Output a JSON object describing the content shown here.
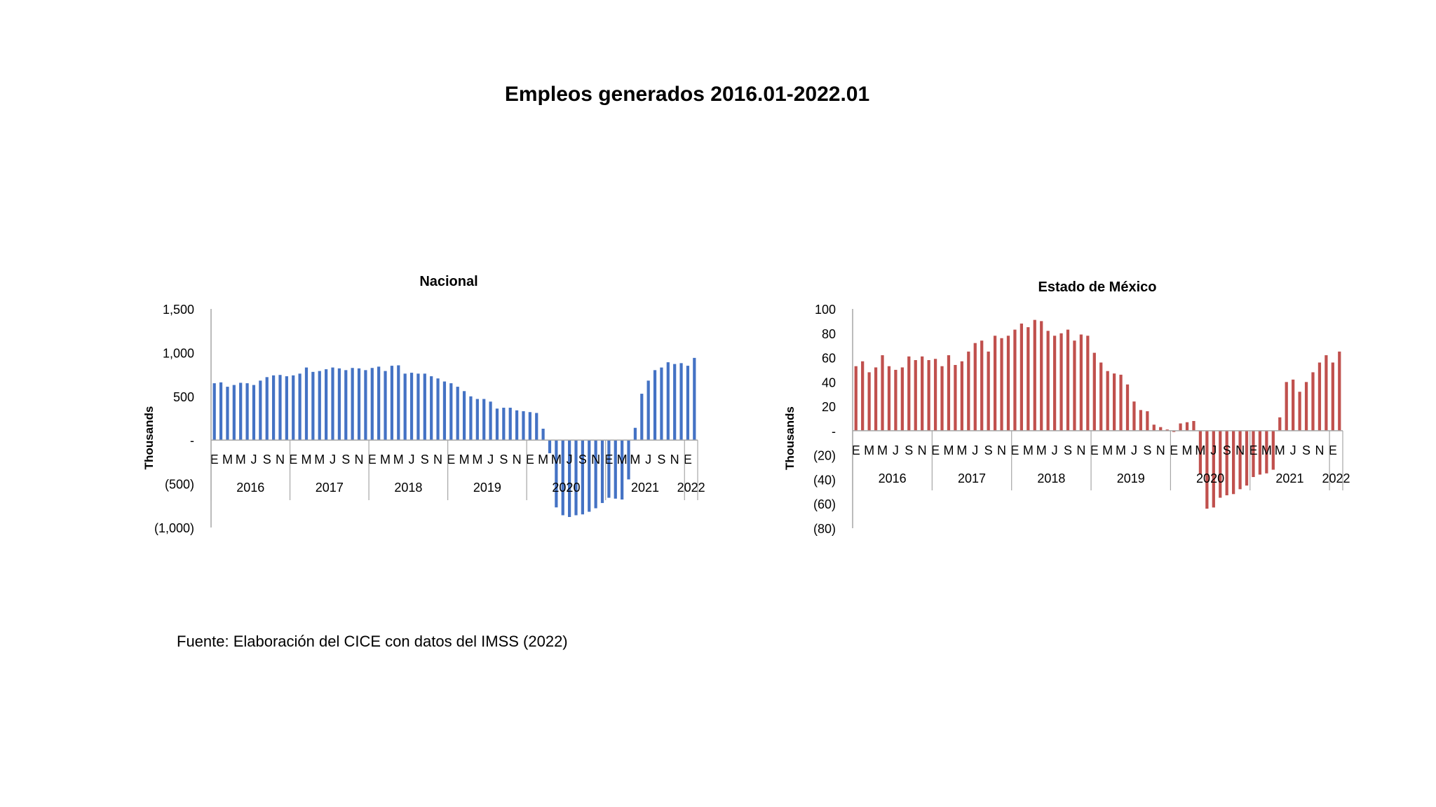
{
  "title": "Empleos generados 2016.01-2022.01",
  "source": "Fuente: Elaboración del CICE con datos del IMSS (2022)",
  "colors": {
    "nacional": "#4472C4",
    "edomex": "#C0504D",
    "axis": "#A6A6A6"
  },
  "chart_data": [
    {
      "type": "bar",
      "title": "Nacional",
      "ylabel": "Thousands",
      "ylim": [
        -1000,
        1500
      ],
      "yticks": [
        1500,
        1000,
        500,
        0,
        -500,
        -1000
      ],
      "ytick_labels": [
        "1,500",
        "1,000",
        "500",
        "-",
        "(500)",
        "(1,000)"
      ],
      "month_labels": [
        "E",
        "M",
        "M",
        "J",
        "S",
        "N"
      ],
      "years": [
        "2016",
        "2017",
        "2018",
        "2019",
        "2020",
        "2021",
        "2022"
      ],
      "values": [
        650,
        660,
        610,
        630,
        655,
        650,
        630,
        680,
        720,
        740,
        745,
        730,
        740,
        760,
        830,
        780,
        790,
        810,
        830,
        820,
        800,
        825,
        820,
        800,
        825,
        840,
        790,
        850,
        855,
        760,
        770,
        760,
        760,
        730,
        705,
        670,
        650,
        610,
        560,
        500,
        470,
        470,
        440,
        360,
        370,
        370,
        340,
        330,
        320,
        310,
        130,
        -150,
        -770,
        -860,
        -880,
        -860,
        -850,
        -820,
        -780,
        -720,
        -660,
        -670,
        -680,
        -450,
        140,
        530,
        680,
        800,
        830,
        890,
        870,
        880,
        850,
        940
      ]
    },
    {
      "type": "bar",
      "title": "Estado de México",
      "ylabel": "Thousands",
      "ylim": [
        -80,
        100
      ],
      "yticks": [
        100,
        80,
        60,
        40,
        20,
        0,
        -20,
        -40,
        -60,
        -80
      ],
      "ytick_labels": [
        "100",
        "80",
        "60",
        "40",
        "20",
        "-",
        "(20)",
        "(40)",
        "(60)",
        "(80)"
      ],
      "month_labels": [
        "E",
        "M",
        "M",
        "J",
        "S",
        "N"
      ],
      "years": [
        "2016",
        "2017",
        "2018",
        "2019",
        "2020",
        "2021",
        "2022"
      ],
      "values": [
        53,
        57,
        48,
        52,
        62,
        53,
        50,
        52,
        61,
        58,
        61,
        58,
        59,
        53,
        62,
        54,
        57,
        65,
        72,
        74,
        65,
        78,
        76,
        78,
        83,
        88,
        85,
        91,
        90,
        82,
        78,
        80,
        83,
        74,
        79,
        78,
        64,
        56,
        49,
        47,
        46,
        38,
        24,
        17,
        16,
        5,
        3,
        1,
        -1,
        6,
        7,
        8,
        -36,
        -64,
        -63,
        -55,
        -53,
        -52,
        -48,
        -45,
        -38,
        -36,
        -35,
        -32,
        11,
        40,
        42,
        32,
        40,
        48,
        56,
        62,
        56,
        65
      ]
    }
  ]
}
